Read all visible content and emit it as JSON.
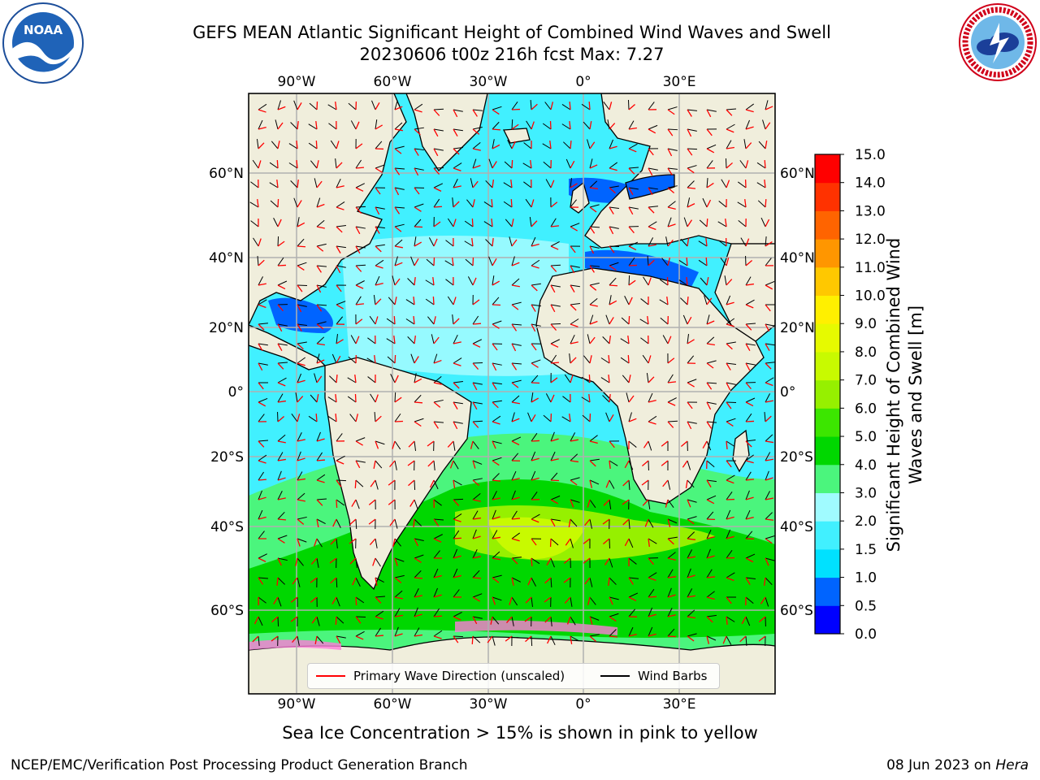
{
  "title": {
    "line1": "GEFS MEAN Atlantic Significant Height of Combined Wind Waves and Swell",
    "line2": "20230606 t00z 216h fcst   Max: 7.27"
  },
  "logos": {
    "left": {
      "name": "noaa-logo",
      "text": "NOAA",
      "ring_text": "NATIONAL OCEANIC AND ATMOSPHERIC ADMINISTRATION · U.S. DEPARTMENT OF COMMERCE"
    },
    "right": {
      "name": "nws-logo",
      "ring_text": "NATIONAL WEATHER SERVICE"
    }
  },
  "map": {
    "lon_labels": [
      "90°W",
      "60°W",
      "30°W",
      "0°",
      "30°E"
    ],
    "lat_labels": [
      "60°N",
      "40°N",
      "20°N",
      "0°",
      "20°S",
      "40°S",
      "60°S"
    ],
    "land_color": "#f0eedc",
    "grid_color": "#b0b0b0"
  },
  "colorbar": {
    "label": "Significant Height of Combined Wind Waves and Swell [m]",
    "ticks": [
      "0.0",
      "0.5",
      "1.0",
      "1.5",
      "2.0",
      "3.0",
      "4.0",
      "5.0",
      "6.0",
      "7.0",
      "8.0",
      "9.0",
      "10.0",
      "11.0",
      "12.0",
      "13.0",
      "14.0",
      "15.0"
    ],
    "colors": [
      "#0000ff",
      "#0064ff",
      "#00e1ff",
      "#41f0ff",
      "#a0fbff",
      "#4bf57d",
      "#00d700",
      "#3ce600",
      "#96f000",
      "#c8fa00",
      "#e6fa00",
      "#fff000",
      "#ffc800",
      "#ff9600",
      "#ff6400",
      "#ff3200",
      "#ff0000"
    ]
  },
  "legend": {
    "wave_dir": "Primary Wave Direction (unscaled)",
    "wind_barbs": "Wind Barbs",
    "wave_dir_color": "#ff0000",
    "wind_barbs_color": "#000000"
  },
  "ice_note": "Sea Ice Concentration > 15% is shown in pink to yellow",
  "footer": {
    "left": "NCEP/EMC/Verification Post Processing Product Generation Branch",
    "right_date": "08 Jun 2023 on ",
    "right_host": "Hera"
  }
}
